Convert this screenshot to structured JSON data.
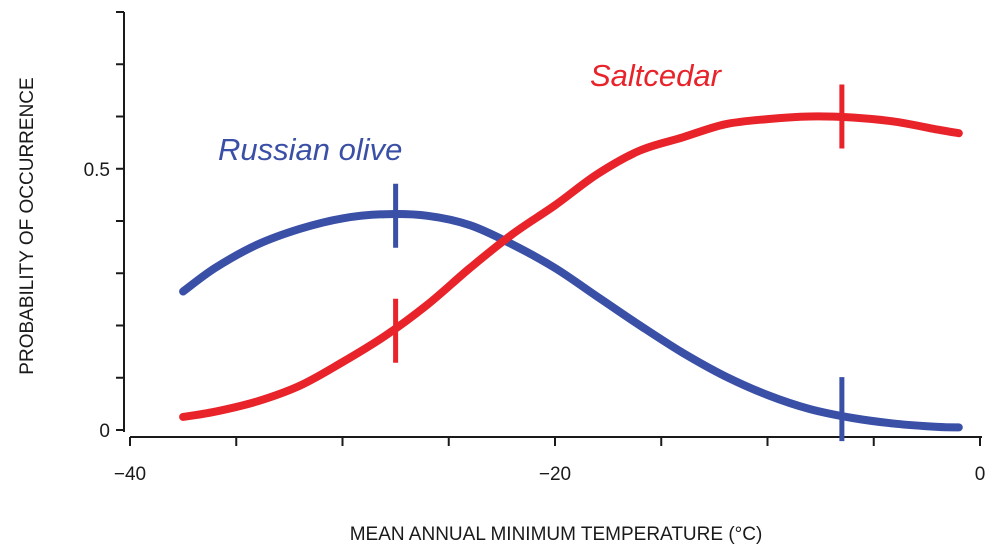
{
  "chart_data": {
    "type": "line",
    "xlabel": "MEAN ANNUAL MINIMUM TEMPERATURE (°C)",
    "ylabel": "PROBABILITY OF OCCURRENCE",
    "xlim": [
      -40,
      0
    ],
    "ylim": [
      0,
      0.8
    ],
    "x_ticks": [
      -40,
      -35,
      -30,
      -25,
      -20,
      -15,
      -10,
      -5,
      0
    ],
    "x_tick_labels": [
      "−40",
      "",
      "",
      "",
      "−20",
      "",
      "",
      "",
      "0"
    ],
    "y_ticks": [
      0,
      0.1,
      0.2,
      0.3,
      0.4,
      0.5,
      0.6,
      0.7,
      0.8
    ],
    "y_tick_labels": [
      "0",
      "",
      "",
      "",
      "",
      "0.5",
      "",
      "",
      ""
    ],
    "grid": false,
    "series": [
      {
        "name": "Russian olive",
        "color": "#3a4fa6",
        "x": [
          -37.5,
          -36,
          -34,
          -32,
          -30,
          -28,
          -26,
          -24,
          -22,
          -20,
          -18,
          -16,
          -14,
          -12,
          -10,
          -8,
          -6,
          -4,
          -2,
          -1
        ],
        "y": [
          0.265,
          0.31,
          0.355,
          0.385,
          0.405,
          0.413,
          0.41,
          0.392,
          0.355,
          0.31,
          0.255,
          0.2,
          0.148,
          0.103,
          0.067,
          0.04,
          0.023,
          0.012,
          0.006,
          0.005
        ],
        "markers": [
          {
            "x": -27.5,
            "y": 0.41
          },
          {
            "x": -6.5,
            "y": 0.04
          }
        ]
      },
      {
        "name": "Saltcedar",
        "color": "#e8232a",
        "x": [
          -37.5,
          -36,
          -34,
          -32,
          -30,
          -28,
          -26,
          -24,
          -22,
          -20,
          -18,
          -16,
          -14,
          -12,
          -10,
          -8,
          -6,
          -4,
          -2,
          -1
        ],
        "y": [
          0.025,
          0.035,
          0.055,
          0.085,
          0.13,
          0.18,
          0.24,
          0.31,
          0.375,
          0.43,
          0.49,
          0.535,
          0.56,
          0.585,
          0.595,
          0.6,
          0.598,
          0.59,
          0.575,
          0.568
        ],
        "markers": [
          {
            "x": -27.5,
            "y": 0.19
          },
          {
            "x": -6.5,
            "y": 0.6
          }
        ]
      }
    ]
  }
}
